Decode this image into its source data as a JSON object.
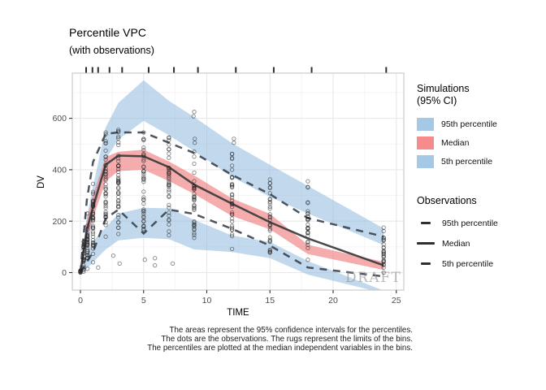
{
  "title": "Percentile VPC",
  "subtitle": "(with observations)",
  "watermark": "DRAFT",
  "caption": {
    "line1": "The areas represent the 95% confidence intervals for the percentiles.",
    "line2": "The dots are the observations. The rugs represent the limits of the bins.",
    "line3": "The percentiles are plotted at the median independent variables in the bins."
  },
  "legend": {
    "simulations": {
      "title_line1": "Simulations",
      "title_line2": "(95% CI)",
      "items": [
        {
          "label": "95th percentile",
          "color": "#a5c8e6"
        },
        {
          "label": "Median",
          "color": "#f68b8b"
        },
        {
          "label": "5th percentile",
          "color": "#a5c8e6"
        }
      ]
    },
    "observations": {
      "title": "Observations",
      "items": [
        {
          "label": "95th percentile",
          "style": "dashed"
        },
        {
          "label": "Median",
          "style": "solid"
        },
        {
          "label": "5th percentile",
          "style": "dashed"
        }
      ]
    }
  },
  "chart_data": {
    "type": "area",
    "subtype": "visual-predictive-check",
    "title": "Percentile VPC",
    "subtitle": "(with observations)",
    "xlabel": "TIME",
    "ylabel": "DV",
    "xlim": [
      -0.65,
      25.6
    ],
    "ylim": [
      -68,
      776
    ],
    "x_ticks": [
      0,
      5,
      10,
      15,
      20,
      25
    ],
    "y_ticks": [
      0,
      200,
      400,
      600
    ],
    "x_minor": [
      2.5,
      7.5,
      12.5,
      17.5,
      22.5
    ],
    "y_minor": [
      100,
      300,
      500,
      700
    ],
    "grid": true,
    "legend_position": "right",
    "times": [
      0,
      0.5,
      1,
      2,
      3,
      5,
      7,
      9,
      12,
      15,
      18,
      24
    ],
    "bands": [
      {
        "name": "simulated 95th percentile CI",
        "color": "#8fb9df",
        "opacity": 0.55,
        "hi": [
          12,
          215,
          335,
          565,
          660,
          748,
          668,
          605,
          503,
          419,
          337,
          172
        ],
        "lo": [
          0,
          95,
          205,
          440,
          518,
          590,
          534,
          472,
          372,
          294,
          230,
          107
        ]
      },
      {
        "name": "simulated 5th percentile CI",
        "color": "#8fb9df",
        "opacity": 0.55,
        "hi": [
          5,
          70,
          122,
          175,
          230,
          252,
          250,
          205,
          144,
          119,
          45,
          -70
        ],
        "lo": [
          0,
          15,
          40,
          90,
          125,
          135,
          130,
          90,
          80,
          56,
          -8,
          -80
        ]
      },
      {
        "name": "simulated median CI",
        "color": "#ee7576",
        "opacity": 0.6,
        "hi": [
          8,
          200,
          300,
          450,
          470,
          478,
          432,
          378,
          288,
          228,
          108,
          42
        ],
        "lo": [
          0,
          128,
          212,
          355,
          395,
          400,
          356,
          306,
          220,
          168,
          72,
          10
        ]
      }
    ],
    "lines": [
      {
        "name": "observed 95th percentile",
        "style": "dashed",
        "values": [
          0,
          280,
          430,
          540,
          545,
          545,
          505,
          465,
          380,
          305,
          212,
          140
        ]
      },
      {
        "name": "observed 5th percentile",
        "style": "dashed",
        "values": [
          0,
          40,
          80,
          210,
          245,
          152,
          245,
          228,
          170,
          105,
          20,
          -15
        ]
      },
      {
        "name": "observed median",
        "style": "solid",
        "values": [
          0,
          165,
          255,
          420,
          455,
          452,
          410,
          342,
          268,
          196,
          133,
          28
        ]
      }
    ],
    "rug_times": [
      0.45,
      0.95,
      1.4,
      2.3,
      3.3,
      5.4,
      7.4,
      9.3,
      12.3,
      15.3,
      18.3,
      24.2
    ],
    "dot_strips": [
      {
        "t": 0,
        "lo": 0,
        "hi": 8,
        "n": 9
      },
      {
        "t": 0.25,
        "lo": 4,
        "hi": 120,
        "n": 22
      },
      {
        "t": 0.55,
        "lo": 15,
        "hi": 230,
        "n": 30
      },
      {
        "t": 1,
        "lo": 40,
        "hi": 345,
        "n": 36
      },
      {
        "t": 2,
        "lo": 140,
        "hi": 545,
        "n": 42
      },
      {
        "t": 3,
        "lo": 150,
        "hi": 555,
        "n": 44
      },
      {
        "t": 5,
        "lo": 165,
        "hi": 545,
        "n": 40
      },
      {
        "t": 7,
        "lo": 145,
        "hi": 525,
        "n": 38
      },
      {
        "t": 9,
        "lo": 135,
        "hi": 470,
        "n": 36
      },
      {
        "t": 12,
        "lo": 92,
        "hi": 462,
        "n": 34
      },
      {
        "t": 15,
        "lo": 78,
        "hi": 362,
        "n": 30
      },
      {
        "t": 18,
        "lo": 50,
        "hi": 355,
        "n": 28
      },
      {
        "t": 24,
        "lo": 0,
        "hi": 175,
        "n": 26
      }
    ],
    "outlier_dots": [
      [
        1.4,
        20
      ],
      [
        2.6,
        66
      ],
      [
        3.1,
        35
      ],
      [
        5.1,
        50
      ],
      [
        5.9,
        28
      ],
      [
        5.9,
        56
      ],
      [
        7.3,
        35
      ],
      [
        9.05,
        505
      ],
      [
        9.05,
        520
      ],
      [
        8.95,
        608
      ],
      [
        9.0,
        625
      ],
      [
        12.15,
        505
      ],
      [
        12.15,
        520
      ]
    ],
    "colors": {
      "solid_line": "#3a3a3a",
      "dashed_line": "#3d4653",
      "dot_stroke": "#222222",
      "grid_major": "#e8e8e8",
      "grid_minor": "#f3f3f3",
      "panel_border": "#c2c2c2",
      "tick": "#333333",
      "rug": "#2f2f2f"
    }
  }
}
